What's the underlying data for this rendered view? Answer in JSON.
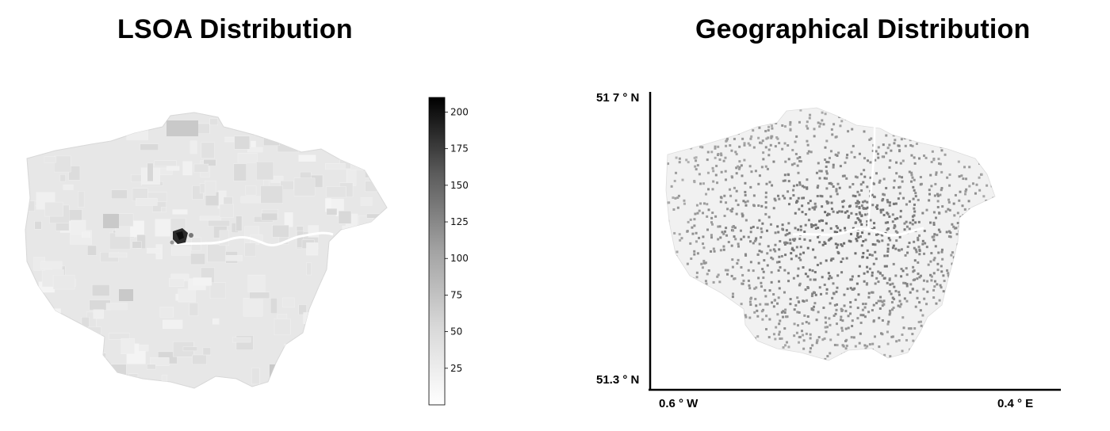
{
  "left_panel": {
    "title": "LSOA Distribution",
    "colorbar": {
      "colormap": "greys",
      "min": 0,
      "max": 210,
      "ticks": [
        "25",
        "50",
        "75",
        "100",
        "125",
        "150",
        "175",
        "200"
      ]
    }
  },
  "right_panel": {
    "title": "Geographical Distribution",
    "lat_top": "51 7 ° N",
    "lat_bottom": "51.3 ° N",
    "lon_left": "0.6 ° W",
    "lon_right": "0.4 ° E"
  },
  "colors": {
    "map_base": "#e6e6e6",
    "map_dense": "#8a8a8a",
    "river": "#ffffff",
    "hotspot": "#1a1a1a"
  }
}
